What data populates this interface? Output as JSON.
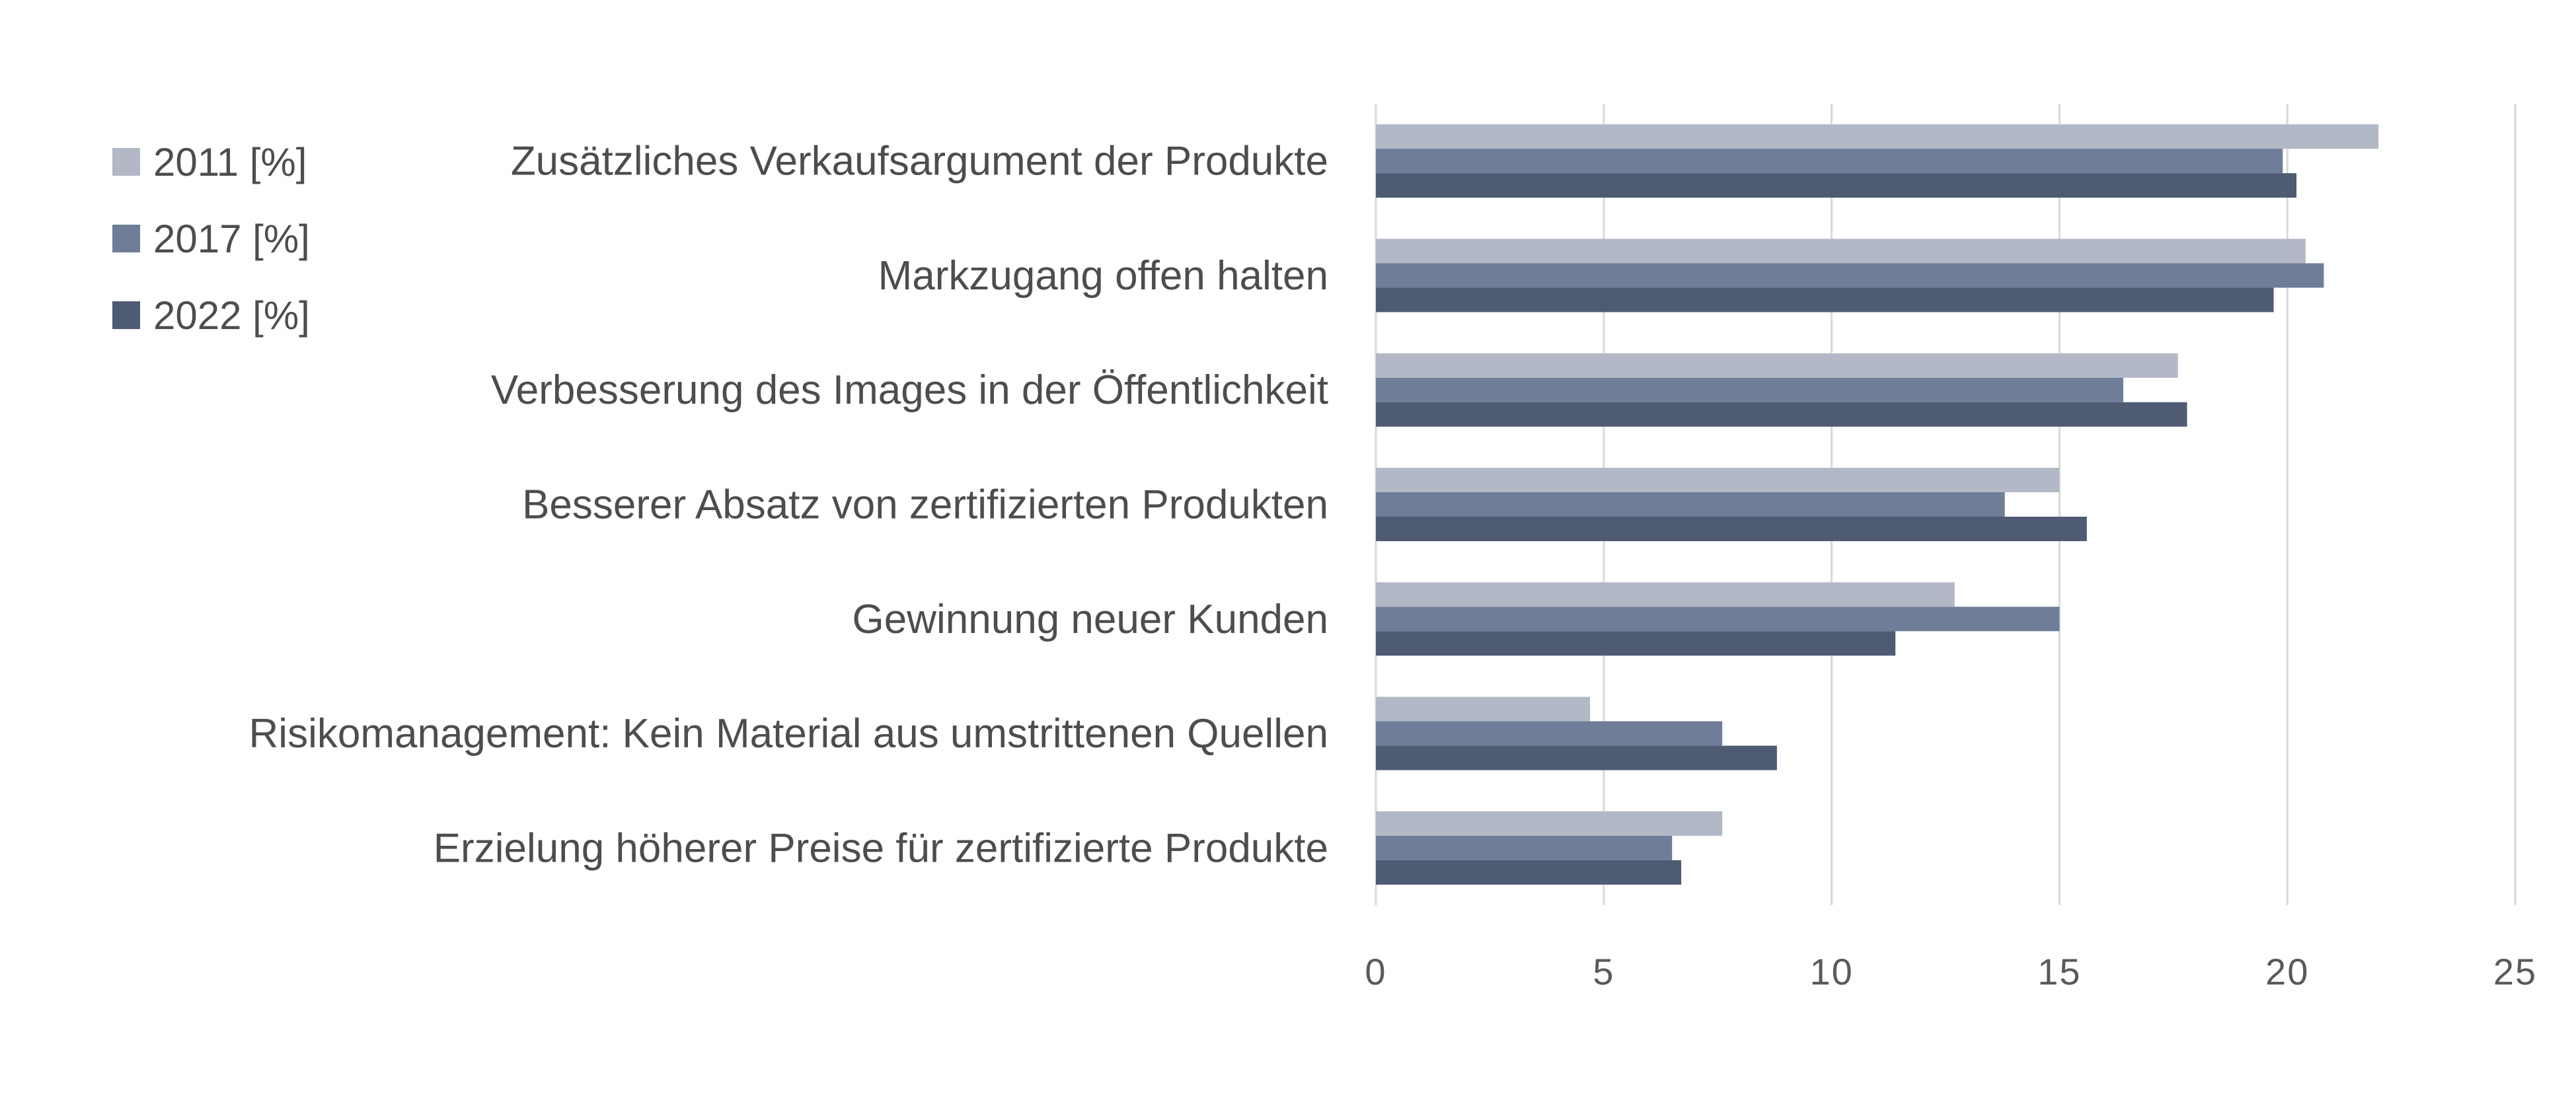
{
  "chart_data": {
    "type": "bar",
    "orientation": "horizontal",
    "title": "",
    "xlabel": "",
    "ylabel": "",
    "categories": [
      "Zusätzliches Verkaufsargument der Produkte",
      "Markzugang offen halten",
      "Verbesserung des Images in der Öffentlichkeit",
      "Besserer Absatz von zertifizierten Produkten",
      "Gewinnung neuer Kunden",
      "Risikomanagement: Kein Material aus umstrittenen Quellen",
      "Erzielung höherer Preise für zertifizierte Produkte"
    ],
    "series": [
      {
        "name": "2011 [%]",
        "color": "#b3b8c6",
        "values": [
          22.0,
          20.4,
          17.6,
          15.0,
          12.7,
          4.7,
          7.6
        ]
      },
      {
        "name": "2017 [%]",
        "color": "#6f7d99",
        "values": [
          19.9,
          20.8,
          16.4,
          13.8,
          15.0,
          7.6,
          6.5
        ]
      },
      {
        "name": "2022 [%]",
        "color": "#4f5a73",
        "values": [
          20.2,
          19.7,
          17.8,
          15.6,
          11.4,
          8.8,
          6.7
        ]
      }
    ],
    "xlim": [
      0,
      25
    ],
    "xticks": [
      "0",
      "5",
      "10",
      "15",
      "20",
      "25"
    ],
    "grid": true,
    "legend_position": "top-left"
  }
}
